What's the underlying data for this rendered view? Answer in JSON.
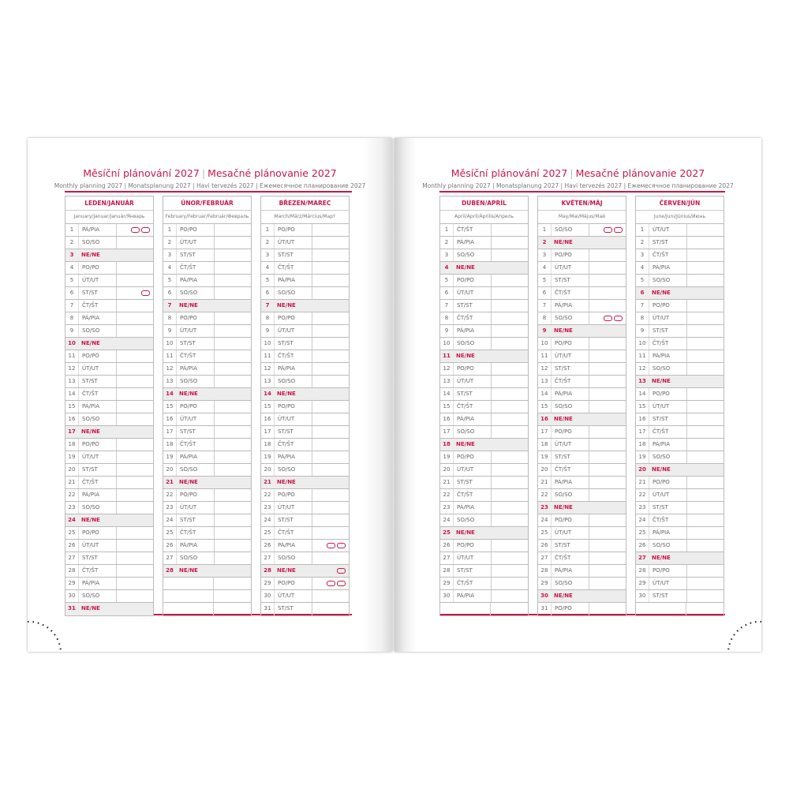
{
  "title_cz": "Měsíční plánování 2027",
  "title_sk": "Mesačné plánovanie 2027",
  "subtitle": "Monthly planning 2027 | Monatsplanung 2027 | Havi tervezés 2027 | Ежемесячное планирование 2027",
  "accent_color": "#c8184a",
  "holiday_icon": "holiday-marker-icon",
  "left_months": [
    {
      "name": "LEDEN/JANUÁR",
      "translations": "January/Januar/Január/Январь",
      "holidays": {
        "1": 2,
        "6": 1
      },
      "days": [
        [
          "1",
          "PÁ/PIA"
        ],
        [
          "2",
          "SO/SO"
        ],
        [
          "3",
          "NE/NE"
        ],
        [
          "4",
          "PO/PO"
        ],
        [
          "5",
          "ÚT/UT"
        ],
        [
          "6",
          "ST/ST"
        ],
        [
          "7",
          "ČT/ŠT"
        ],
        [
          "8",
          "PÁ/PIA"
        ],
        [
          "9",
          "SO/SO"
        ],
        [
          "10",
          "NE/NE"
        ],
        [
          "11",
          "PO/PO"
        ],
        [
          "12",
          "ÚT/UT"
        ],
        [
          "13",
          "ST/ST"
        ],
        [
          "14",
          "ČT/ŠT"
        ],
        [
          "15",
          "PÁ/PIA"
        ],
        [
          "16",
          "SO/SO"
        ],
        [
          "17",
          "NE/NE"
        ],
        [
          "18",
          "PO/PO"
        ],
        [
          "19",
          "ÚT/UT"
        ],
        [
          "20",
          "ST/ST"
        ],
        [
          "21",
          "ČT/ŠT"
        ],
        [
          "22",
          "PÁ/PIA"
        ],
        [
          "23",
          "SO/SO"
        ],
        [
          "24",
          "NE/NE"
        ],
        [
          "25",
          "PO/PO"
        ],
        [
          "26",
          "ÚT/UT"
        ],
        [
          "27",
          "ST/ST"
        ],
        [
          "28",
          "ČT/ŠT"
        ],
        [
          "29",
          "PÁ/PIA"
        ],
        [
          "30",
          "SO/SO"
        ],
        [
          "31",
          "NE/NE"
        ]
      ]
    },
    {
      "name": "ÚNOR/FEBRUÁR",
      "translations": "February/Februar/Február/Февраль",
      "holidays": {},
      "days": [
        [
          "1",
          "PO/PO"
        ],
        [
          "2",
          "ÚT/UT"
        ],
        [
          "3",
          "ST/ST"
        ],
        [
          "4",
          "ČT/ŠT"
        ],
        [
          "5",
          "PÁ/PIA"
        ],
        [
          "6",
          "SO/SO"
        ],
        [
          "7",
          "NE/NE"
        ],
        [
          "8",
          "PO/PO"
        ],
        [
          "9",
          "ÚT/UT"
        ],
        [
          "10",
          "ST/ST"
        ],
        [
          "11",
          "ČT/ŠT"
        ],
        [
          "12",
          "PÁ/PIA"
        ],
        [
          "13",
          "SO/SO"
        ],
        [
          "14",
          "NE/NE"
        ],
        [
          "15",
          "PO/PO"
        ],
        [
          "16",
          "ÚT/UT"
        ],
        [
          "17",
          "ST/ST"
        ],
        [
          "18",
          "ČT/ŠT"
        ],
        [
          "19",
          "PÁ/PIA"
        ],
        [
          "20",
          "SO/SO"
        ],
        [
          "21",
          "NE/NE"
        ],
        [
          "22",
          "PO/PO"
        ],
        [
          "23",
          "ÚT/UT"
        ],
        [
          "24",
          "ST/ST"
        ],
        [
          "25",
          "ČT/ŠT"
        ],
        [
          "26",
          "PÁ/PIA"
        ],
        [
          "27",
          "SO/SO"
        ],
        [
          "28",
          "NE/NE"
        ]
      ]
    },
    {
      "name": "BŘEZEN/MAREC",
      "translations": "March/März/Március/Март",
      "holidays": {
        "26": 2,
        "28": 1,
        "29": 2
      },
      "days": [
        [
          "1",
          "PO/PO"
        ],
        [
          "2",
          "ÚT/UT"
        ],
        [
          "3",
          "ST/ST"
        ],
        [
          "4",
          "ČT/ŠT"
        ],
        [
          "5",
          "PÁ/PIA"
        ],
        [
          "6",
          "SO/SO"
        ],
        [
          "7",
          "NE/NE"
        ],
        [
          "8",
          "PO/PO"
        ],
        [
          "9",
          "ÚT/UT"
        ],
        [
          "10",
          "ST/ST"
        ],
        [
          "11",
          "ČT/ŠT"
        ],
        [
          "12",
          "PÁ/PIA"
        ],
        [
          "13",
          "SO/SO"
        ],
        [
          "14",
          "NE/NE"
        ],
        [
          "15",
          "PO/PO"
        ],
        [
          "16",
          "ÚT/UT"
        ],
        [
          "17",
          "ST/ST"
        ],
        [
          "18",
          "ČT/ŠT"
        ],
        [
          "19",
          "PÁ/PIA"
        ],
        [
          "20",
          "SO/SO"
        ],
        [
          "21",
          "NE/NE"
        ],
        [
          "22",
          "PO/PO"
        ],
        [
          "23",
          "ÚT/UT"
        ],
        [
          "24",
          "ST/ST"
        ],
        [
          "25",
          "ČT/ŠT"
        ],
        [
          "26",
          "PÁ/PIA"
        ],
        [
          "27",
          "SO/SO"
        ],
        [
          "28",
          "NE/NE"
        ],
        [
          "29",
          "PO/PO"
        ],
        [
          "30",
          "ÚT/UT"
        ],
        [
          "31",
          "ST/ST"
        ]
      ]
    }
  ],
  "right_months": [
    {
      "name": "DUBEN/APRÍL",
      "translations": "April/April/Április/Апрель",
      "holidays": {},
      "days": [
        [
          "1",
          "ČT/ŠT"
        ],
        [
          "2",
          "PÁ/PIA"
        ],
        [
          "3",
          "SO/SO"
        ],
        [
          "4",
          "NE/NE"
        ],
        [
          "5",
          "PO/PO"
        ],
        [
          "6",
          "ÚT/UT"
        ],
        [
          "7",
          "ST/ST"
        ],
        [
          "8",
          "ČT/ŠT"
        ],
        [
          "9",
          "PÁ/PIA"
        ],
        [
          "10",
          "SO/SO"
        ],
        [
          "11",
          "NE/NE"
        ],
        [
          "12",
          "PO/PO"
        ],
        [
          "13",
          "ÚT/UT"
        ],
        [
          "14",
          "ST/ST"
        ],
        [
          "15",
          "ČT/ŠT"
        ],
        [
          "16",
          "PÁ/PIA"
        ],
        [
          "17",
          "SO/SO"
        ],
        [
          "18",
          "NE/NE"
        ],
        [
          "19",
          "PO/PO"
        ],
        [
          "20",
          "ÚT/UT"
        ],
        [
          "21",
          "ST/ST"
        ],
        [
          "22",
          "ČT/ŠT"
        ],
        [
          "23",
          "PÁ/PIA"
        ],
        [
          "24",
          "SO/SO"
        ],
        [
          "25",
          "NE/NE"
        ],
        [
          "26",
          "PO/PO"
        ],
        [
          "27",
          "ÚT/UT"
        ],
        [
          "28",
          "ST/ST"
        ],
        [
          "29",
          "ČT/ŠT"
        ],
        [
          "30",
          "PÁ/PIA"
        ]
      ]
    },
    {
      "name": "KVĚTEN/MÁJ",
      "translations": "May/Mai/Május/Май",
      "holidays": {
        "1": 2,
        "8": 2
      },
      "days": [
        [
          "1",
          "SO/SO"
        ],
        [
          "2",
          "NE/NE"
        ],
        [
          "3",
          "PO/PO"
        ],
        [
          "4",
          "ÚT/UT"
        ],
        [
          "5",
          "ST/ST"
        ],
        [
          "6",
          "ČT/ŠT"
        ],
        [
          "7",
          "PÁ/PIA"
        ],
        [
          "8",
          "SO/SO"
        ],
        [
          "9",
          "NE/NE"
        ],
        [
          "10",
          "PO/PO"
        ],
        [
          "11",
          "ÚT/UT"
        ],
        [
          "12",
          "ST/ST"
        ],
        [
          "13",
          "ČT/ŠT"
        ],
        [
          "14",
          "PÁ/PIA"
        ],
        [
          "15",
          "SO/SO"
        ],
        [
          "16",
          "NE/NE"
        ],
        [
          "17",
          "PO/PO"
        ],
        [
          "18",
          "ÚT/UT"
        ],
        [
          "19",
          "ST/ST"
        ],
        [
          "20",
          "ČT/ŠT"
        ],
        [
          "21",
          "PÁ/PIA"
        ],
        [
          "22",
          "SO/SO"
        ],
        [
          "23",
          "NE/NE"
        ],
        [
          "24",
          "PO/PO"
        ],
        [
          "25",
          "ÚT/UT"
        ],
        [
          "26",
          "ST/ST"
        ],
        [
          "27",
          "ČT/ŠT"
        ],
        [
          "28",
          "PÁ/PIA"
        ],
        [
          "29",
          "SO/SO"
        ],
        [
          "30",
          "NE/NE"
        ],
        [
          "31",
          "PO/PO"
        ]
      ]
    },
    {
      "name": "ČERVEN/JÚN",
      "translations": "June/Juni/Június/Июнь",
      "holidays": {},
      "days": [
        [
          "1",
          "ÚT/UT"
        ],
        [
          "2",
          "ST/ST"
        ],
        [
          "3",
          "ČT/ŠT"
        ],
        [
          "4",
          "PÁ/PIA"
        ],
        [
          "5",
          "SO/SO"
        ],
        [
          "6",
          "NE/NE"
        ],
        [
          "7",
          "PO/PO"
        ],
        [
          "8",
          "ÚT/UT"
        ],
        [
          "9",
          "ST/ST"
        ],
        [
          "10",
          "ČT/ŠT"
        ],
        [
          "11",
          "PÁ/PIA"
        ],
        [
          "12",
          "SO/SO"
        ],
        [
          "13",
          "NE/NE"
        ],
        [
          "14",
          "PO/PO"
        ],
        [
          "15",
          "ÚT/UT"
        ],
        [
          "16",
          "ST/ST"
        ],
        [
          "17",
          "ČT/ŠT"
        ],
        [
          "18",
          "PÁ/PIA"
        ],
        [
          "19",
          "SO/SO"
        ],
        [
          "20",
          "NE/NE"
        ],
        [
          "21",
          "PO/PO"
        ],
        [
          "22",
          "ÚT/UT"
        ],
        [
          "23",
          "ST/ST"
        ],
        [
          "24",
          "ČT/ŠT"
        ],
        [
          "25",
          "PÁ/PIA"
        ],
        [
          "26",
          "SO/SO"
        ],
        [
          "27",
          "NE/NE"
        ],
        [
          "28",
          "PO/PO"
        ],
        [
          "29",
          "ÚT/UT"
        ],
        [
          "30",
          "ST/ST"
        ]
      ]
    }
  ]
}
